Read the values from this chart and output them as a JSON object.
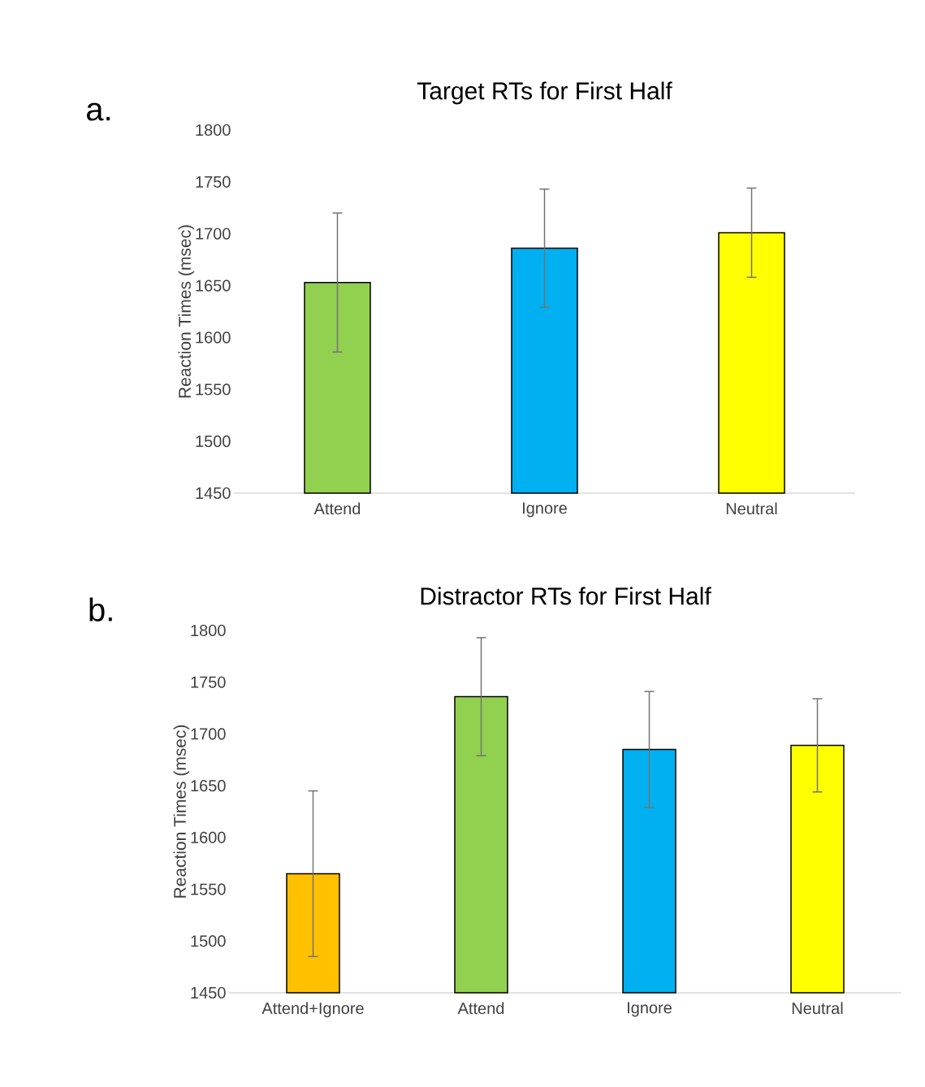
{
  "chart_data": [
    {
      "type": "bar",
      "title": "Target RTs for First Half",
      "ylabel": "Reaction Times (msec)",
      "annotations": [
        "a."
      ],
      "categories": [
        "Attend",
        "Ignore",
        "Neutral"
      ],
      "values": [
        1653,
        1686,
        1701
      ],
      "errors": [
        67,
        57,
        43
      ],
      "colors": [
        "#92d050",
        "#00b0f0",
        "#ffff00"
      ],
      "ylim": [
        1450,
        1800
      ],
      "yticks": [
        1450,
        1500,
        1550,
        1600,
        1650,
        1700,
        1750,
        1800
      ]
    },
    {
      "type": "bar",
      "title": "Distractor RTs for First Half",
      "ylabel": "Reaction Times (msec)",
      "annotations": [
        "b."
      ],
      "categories": [
        "Attend+Ignore",
        "Attend",
        "Ignore",
        "Neutral"
      ],
      "values": [
        1565,
        1736,
        1685,
        1689
      ],
      "errors": [
        80,
        57,
        56,
        45
      ],
      "colors": [
        "#ffc000",
        "#92d050",
        "#00b0f0",
        "#ffff00"
      ],
      "ylim": [
        1450,
        1800
      ],
      "yticks": [
        1450,
        1500,
        1550,
        1600,
        1650,
        1700,
        1750,
        1800
      ]
    }
  ]
}
